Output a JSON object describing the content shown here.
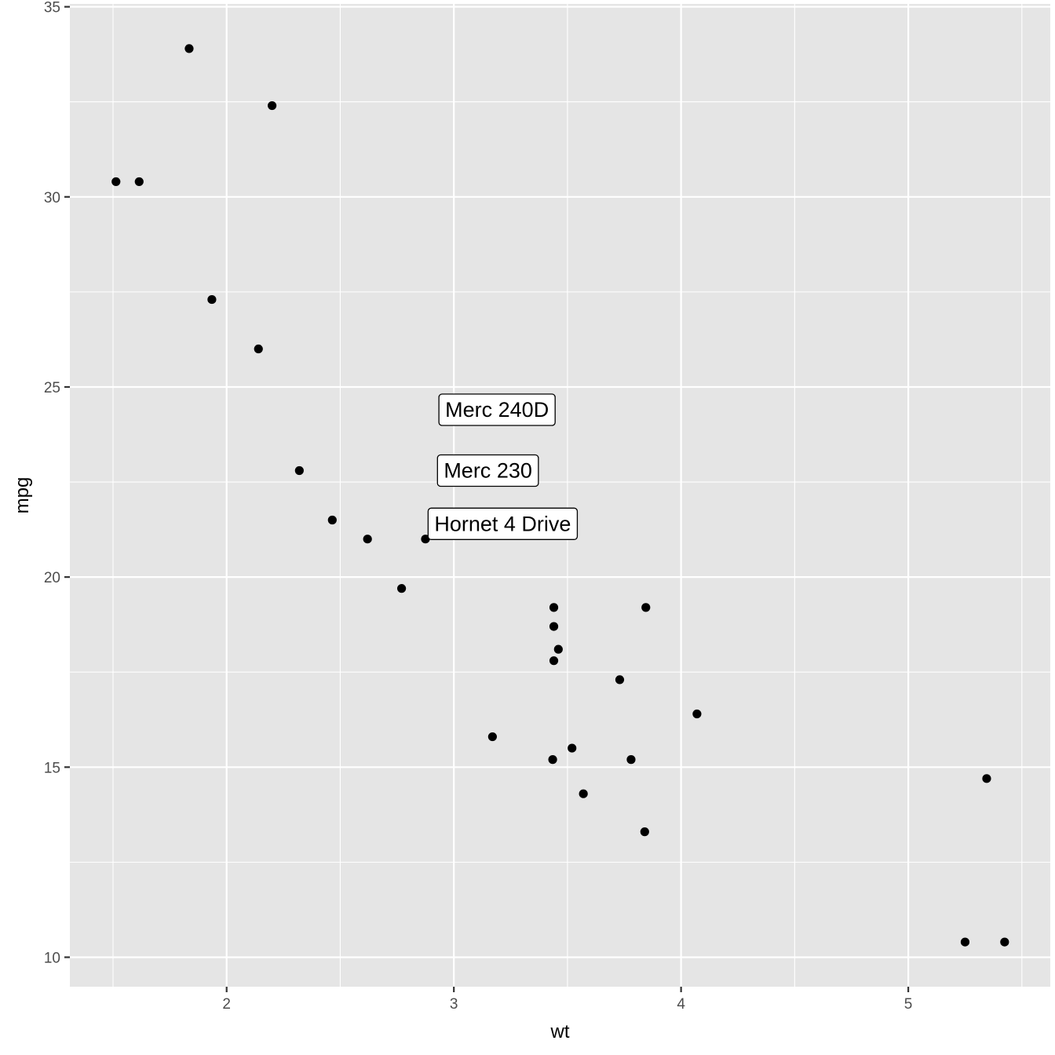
{
  "chart_data": {
    "type": "scatter",
    "title": "",
    "xlabel": "wt",
    "ylabel": "mpg",
    "xlim": [
      1.31,
      5.625
    ],
    "ylim": [
      9.225,
      35.075
    ],
    "x_ticks": [
      2,
      3,
      4,
      5
    ],
    "y_ticks": [
      10,
      15,
      20,
      25,
      30,
      35
    ],
    "x_tick_labels": [
      "2",
      "3",
      "4",
      "5"
    ],
    "y_tick_labels": [
      "10",
      "15",
      "20",
      "25",
      "30",
      "35"
    ],
    "grid": true,
    "legend": "none",
    "points": [
      {
        "x": 1.835,
        "y": 33.9
      },
      {
        "x": 2.2,
        "y": 32.4
      },
      {
        "x": 1.513,
        "y": 30.4
      },
      {
        "x": 1.615,
        "y": 30.4
      },
      {
        "x": 1.935,
        "y": 27.3
      },
      {
        "x": 2.14,
        "y": 26.0
      },
      {
        "x": 2.32,
        "y": 22.8
      },
      {
        "x": 2.465,
        "y": 21.5
      },
      {
        "x": 2.62,
        "y": 21.0
      },
      {
        "x": 2.875,
        "y": 21.0
      },
      {
        "x": 2.77,
        "y": 19.7
      },
      {
        "x": 3.44,
        "y": 19.2
      },
      {
        "x": 3.845,
        "y": 19.2
      },
      {
        "x": 3.44,
        "y": 18.7
      },
      {
        "x": 3.46,
        "y": 18.1
      },
      {
        "x": 3.44,
        "y": 17.8
      },
      {
        "x": 3.73,
        "y": 17.3
      },
      {
        "x": 4.07,
        "y": 16.4
      },
      {
        "x": 3.17,
        "y": 15.8
      },
      {
        "x": 3.52,
        "y": 15.5
      },
      {
        "x": 3.435,
        "y": 15.2
      },
      {
        "x": 3.78,
        "y": 15.2
      },
      {
        "x": 3.57,
        "y": 14.3
      },
      {
        "x": 3.84,
        "y": 13.3
      },
      {
        "x": 5.345,
        "y": 14.7
      },
      {
        "x": 5.25,
        "y": 10.4
      },
      {
        "x": 5.424,
        "y": 10.4
      }
    ],
    "annotations": [
      {
        "text": "Merc 240D",
        "x": 3.19,
        "y": 24.4
      },
      {
        "text": "Merc 230",
        "x": 3.15,
        "y": 22.8
      },
      {
        "text": "Hornet 4 Drive",
        "x": 3.215,
        "y": 21.4
      }
    ],
    "colors": {
      "panel_bg": "#e5e5e5",
      "grid": "#ffffff",
      "point": "#000000",
      "label_fill": "#ffffff",
      "label_border": "#000000"
    }
  }
}
